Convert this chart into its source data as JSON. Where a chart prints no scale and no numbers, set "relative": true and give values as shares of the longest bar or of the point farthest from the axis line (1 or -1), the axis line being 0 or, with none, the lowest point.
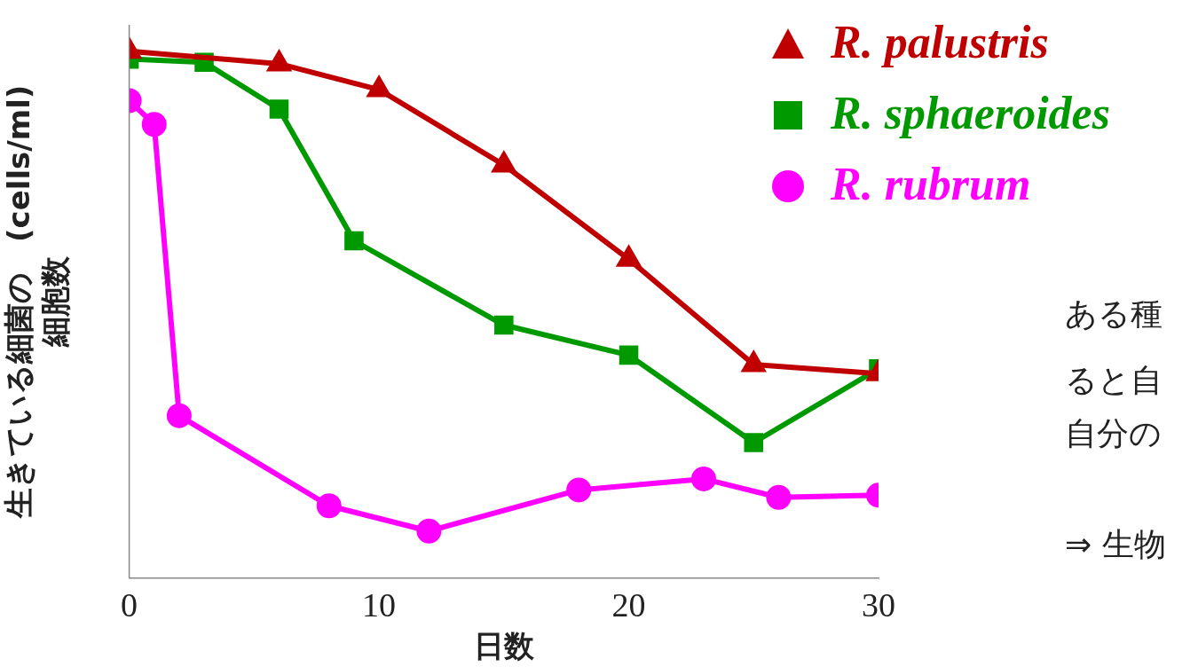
{
  "chart_data": {
    "type": "line",
    "relative": true,
    "xlabel": "日数",
    "ylabel": "生きている細菌の　(cells/ml)\n細胞数",
    "xlim": [
      0,
      30
    ],
    "xticks": [
      0,
      10,
      20,
      30
    ],
    "legend": "top right",
    "line_style": "solid",
    "annotations": [
      "ある種",
      "ると自",
      "自分の",
      "⇒ 生物"
    ],
    "series": [
      {
        "name": "R. palustris",
        "color": "#c00000",
        "marker": "triangle",
        "x": [
          0,
          6,
          10,
          15,
          20,
          25,
          30
        ],
        "values": [
          1,
          0.976,
          0.927,
          0.784,
          0.605,
          0.405,
          0.388
        ]
      },
      {
        "name": "R. sphaeroides",
        "color": "#009900",
        "marker": "square",
        "x": [
          0,
          3,
          6,
          9,
          15,
          20,
          25,
          30
        ],
        "values": [
          0.985,
          0.979,
          0.89,
          0.64,
          0.48,
          0.423,
          0.257,
          0.397
        ]
      },
      {
        "name": "R. rubrum",
        "color": "#ff00ff",
        "marker": "circle",
        "x": [
          0,
          1,
          2,
          8,
          12,
          18,
          23,
          26,
          30
        ],
        "values": [
          0.906,
          0.861,
          0.308,
          0.137,
          0.089,
          0.167,
          0.188,
          0.153,
          0.157
        ]
      }
    ]
  }
}
